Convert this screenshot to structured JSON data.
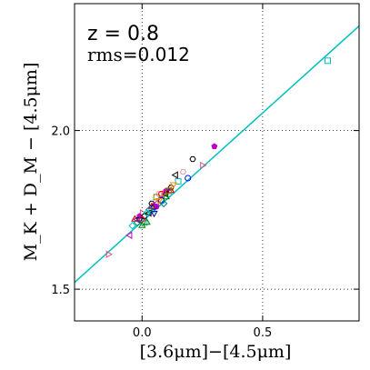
{
  "chart_data": {
    "type": "scatter",
    "title": "",
    "annotations": {
      "redshift": "z = 0.8",
      "rms_label": "rms",
      "rms_value": "=0.012"
    },
    "xlabel": "[3.6μm]−[4.5μm]",
    "ylabel": "M_K + D_M − [4.5μm]",
    "xlim": [
      -0.28,
      0.9
    ],
    "ylim": [
      1.4,
      2.4
    ],
    "xticks": [
      0.0,
      0.5
    ],
    "xtick_labels": [
      "0.0",
      "0.5"
    ],
    "yticks": [
      1.5,
      2.0
    ],
    "ytick_labels": [
      "1.5",
      "2.0"
    ],
    "grid": "dotted at ticks",
    "fit_line": {
      "slope": 0.685,
      "intercept": 1.713,
      "color": "#00c0c0"
    },
    "series": [
      {
        "marker": "square",
        "color": "#00bfbf",
        "points": [
          [
            0.77,
            2.22
          ],
          [
            0.01,
            1.71
          ],
          [
            0.04,
            1.75
          ],
          [
            0.08,
            1.78
          ],
          [
            0.15,
            1.84
          ]
        ]
      },
      {
        "marker": "triangle-right",
        "color": "#e05080",
        "points": [
          [
            -0.14,
            1.61
          ],
          [
            0.25,
            1.89
          ],
          [
            0.09,
            1.8
          ],
          [
            0.0,
            1.74
          ]
        ]
      },
      {
        "marker": "pentagon",
        "color": "#c000c0",
        "points": [
          [
            0.3,
            1.95
          ],
          [
            0.06,
            1.76
          ],
          [
            0.1,
            1.81
          ],
          [
            -0.01,
            1.73
          ]
        ]
      },
      {
        "marker": "hexagon",
        "color": "#000000",
        "points": [
          [
            0.21,
            1.91
          ],
          [
            0.12,
            1.82
          ],
          [
            0.04,
            1.77
          ],
          [
            0.01,
            1.73
          ]
        ]
      },
      {
        "marker": "triangle-left",
        "color": "#000000",
        "points": [
          [
            0.14,
            1.86
          ],
          [
            0.03,
            1.74
          ],
          [
            0.1,
            1.8
          ]
        ]
      },
      {
        "marker": "circle",
        "color": "#0000ff",
        "points": [
          [
            0.19,
            1.85
          ],
          [
            0.08,
            1.78
          ],
          [
            0.05,
            1.76
          ]
        ]
      },
      {
        "marker": "hexagon",
        "color": "#e0a0a0",
        "points": [
          [
            0.17,
            1.87
          ],
          [
            0.07,
            1.8
          ]
        ]
      },
      {
        "marker": "triangle-left",
        "color": "#c000c0",
        "points": [
          [
            -0.05,
            1.67
          ],
          [
            -0.02,
            1.72
          ],
          [
            0.06,
            1.77
          ]
        ]
      },
      {
        "marker": "triangle-up",
        "color": "#008000",
        "points": [
          [
            0.02,
            1.71
          ],
          [
            0.0,
            1.7
          ],
          [
            0.1,
            1.79
          ]
        ]
      },
      {
        "marker": "triangle-up",
        "color": "#c00000",
        "points": [
          [
            -0.03,
            1.72
          ],
          [
            0.04,
            1.76
          ],
          [
            0.12,
            1.81
          ]
        ]
      },
      {
        "marker": "triangle-down",
        "color": "#000080",
        "points": [
          [
            -0.01,
            1.72
          ],
          [
            0.05,
            1.74
          ]
        ]
      },
      {
        "marker": "diamond",
        "color": "#008080",
        "points": [
          [
            0.03,
            1.75
          ],
          [
            0.09,
            1.77
          ],
          [
            -0.02,
            1.71
          ]
        ]
      },
      {
        "marker": "square",
        "color": "#808000",
        "points": [
          [
            0.11,
            1.81
          ],
          [
            0.06,
            1.79
          ]
        ]
      },
      {
        "marker": "triangle-down",
        "color": "#ff8c00",
        "points": [
          [
            0.07,
            1.78
          ],
          [
            0.13,
            1.83
          ]
        ]
      },
      {
        "marker": "circle",
        "color": "#ff0000",
        "points": [
          [
            0.0,
            1.72
          ],
          [
            0.08,
            1.8
          ]
        ]
      },
      {
        "marker": "diamond",
        "color": "#00c0c0",
        "points": [
          [
            -0.04,
            1.7
          ],
          [
            0.02,
            1.74
          ]
        ]
      }
    ]
  }
}
